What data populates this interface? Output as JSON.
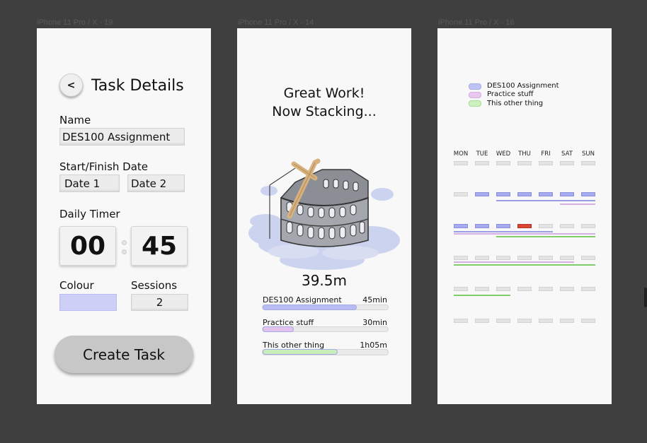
{
  "frames": [
    "iPhone 11 Pro / X - 19",
    "iPhone 11 Pro / X - 14",
    "iPhone 11 Pro / X - 16"
  ],
  "colors": {
    "blue": "#b8bcf2",
    "pink": "#e4c4ee",
    "green": "#c8efb9",
    "red": "#d94636"
  },
  "task_details": {
    "back_label": "<",
    "title": "Task Details",
    "name_label": "Name",
    "name_value": "DES100 Assignment",
    "date_label": "Start/Finish Date",
    "date1": "Date 1",
    "date2": "Date 2",
    "timer_label": "Daily Timer",
    "timer_hours": "00",
    "timer_minutes": "45",
    "colour_label": "Colour",
    "sessions_label": "Sessions",
    "sessions_value": "2",
    "create_label": "Create Task"
  },
  "progress": {
    "line1": "Great Work!",
    "line2": "Now Stacking...",
    "total": "39.5m",
    "tasks": [
      {
        "name": "DES100 Assignment",
        "time": "45min",
        "progress": 0.75
      },
      {
        "name": "Practice stuff",
        "time": "30min",
        "progress": 0.25
      },
      {
        "name": "This other thing",
        "time": "1h05m",
        "progress": 0.6
      }
    ]
  },
  "calendar": {
    "legend": [
      "DES100 Assignment",
      "Practice stuff",
      "This other thing"
    ],
    "days": [
      "MON",
      "TUE",
      "WED",
      "THU",
      "FRI",
      "SAT",
      "SUN"
    ]
  }
}
